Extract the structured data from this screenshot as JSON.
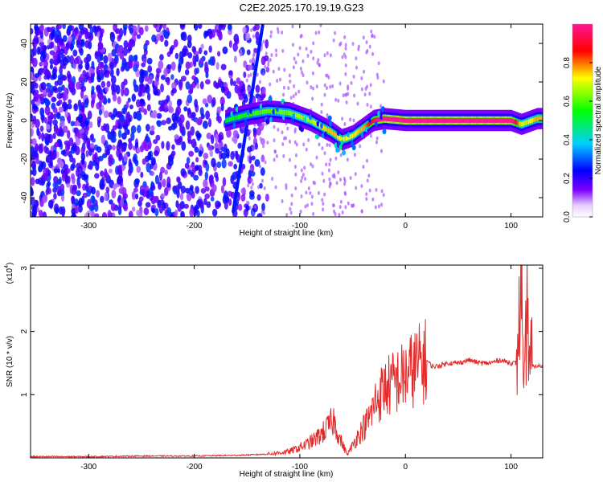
{
  "figure": {
    "title": "C2E2.2025.170.19.19.G23"
  },
  "chart_data": [
    {
      "type": "heatmap",
      "xlabel": "Height of straight line (km)",
      "ylabel": "Frequency (Hz)",
      "xlim": [
        -355,
        130
      ],
      "ylim": [
        -50,
        50
      ],
      "x_ticks": [
        -300,
        -200,
        -100,
        0,
        100
      ],
      "y_ticks": [
        -40,
        -20,
        0,
        20,
        40
      ],
      "colorbar": {
        "label": "Normalized spectral amplitude",
        "ticks": [
          0.0,
          0.2,
          0.4,
          0.6,
          0.8
        ],
        "tick_labels": [
          "0.0",
          "0.2",
          "0.4",
          "0.6",
          "0.8"
        ],
        "range": [
          0,
          1
        ],
        "colormap": [
          "#ffffff",
          "#7b00ff",
          "#0000ff",
          "#00d0ff",
          "#00ff00",
          "#ffff00",
          "#ff0000",
          "#ff1493"
        ]
      },
      "ridge": {
        "description_x": [
          -170,
          -150,
          -130,
          -110,
          -100,
          -90,
          -80,
          -70,
          -60,
          -50,
          -40,
          -30,
          -20,
          0,
          20,
          50,
          80,
          100,
          110,
          125
        ],
        "frequency_hz": [
          0,
          3,
          5,
          4,
          2,
          0,
          -3,
          -6,
          -10,
          -8,
          -4,
          0,
          1,
          0,
          0,
          0,
          0,
          0,
          -2,
          1
        ],
        "peak_amplitude": [
          0.35,
          0.4,
          0.45,
          0.45,
          0.5,
          0.5,
          0.55,
          0.6,
          0.55,
          0.55,
          0.6,
          0.8,
          0.95,
          0.95,
          0.95,
          0.95,
          0.95,
          0.95,
          0.5,
          0.6
        ]
      }
    },
    {
      "type": "line",
      "xlabel": "Height of straight line (km)",
      "ylabel": "SNR (10 * v/v)",
      "multiplier_label": "(x10",
      "multiplier_exp": "4",
      "xlim": [
        -355,
        130
      ],
      "ylim": [
        0,
        3.05
      ],
      "x_ticks": [
        -300,
        -200,
        -100,
        0,
        100
      ],
      "y_ticks": [
        1,
        2,
        3
      ],
      "color": "#e32b2b",
      "series": [
        {
          "x": [
            -355,
            -300,
            -250,
            -200,
            -160,
            -130,
            -110,
            -95,
            -85,
            -75,
            -68,
            -62,
            -55,
            -45,
            -35,
            -28,
            -20,
            -10,
            0,
            10,
            20,
            25,
            30,
            40,
            50,
            60,
            70,
            80,
            90,
            100,
            105,
            108,
            110,
            112,
            115,
            118,
            120,
            125,
            130
          ],
          "y": [
            0.02,
            0.02,
            0.03,
            0.03,
            0.04,
            0.06,
            0.1,
            0.2,
            0.3,
            0.45,
            0.6,
            0.3,
            0.05,
            0.35,
            0.6,
            0.9,
            1.1,
            1.2,
            1.3,
            1.45,
            1.55,
            1.45,
            1.45,
            1.5,
            1.5,
            1.55,
            1.5,
            1.5,
            1.55,
            1.5,
            1.5,
            2.2,
            3.0,
            0.2,
            2.5,
            1.5,
            1.45,
            1.45,
            1.45
          ]
        }
      ]
    }
  ]
}
